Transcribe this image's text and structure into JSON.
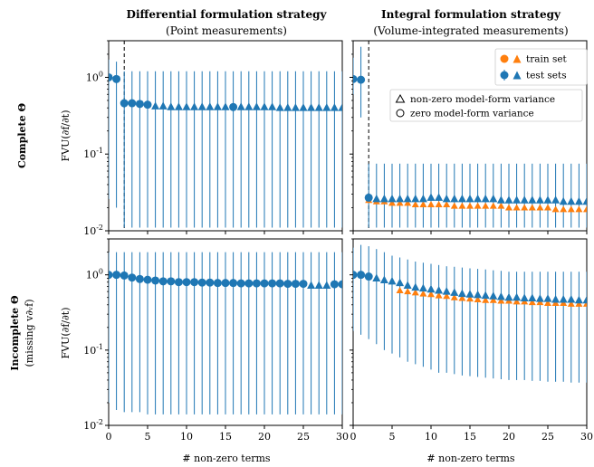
{
  "figure": {
    "col_titles": [
      {
        "main": "Differential formulation strategy",
        "sub": "(Point measurements)"
      },
      {
        "main": "Integral formulation strategy",
        "sub": "(Volume-integrated measurements)"
      }
    ],
    "row_labels": [
      {
        "main": "Complete Θ",
        "sub": ""
      },
      {
        "main": "Incomplete Θ",
        "sub": "(missing v∂ᵥf)"
      }
    ],
    "ylabel": "FVU(∂f/∂t)",
    "xlabel": "# non-zero terms",
    "legend_top": {
      "train": "train set",
      "test": "test sets"
    },
    "legend_markers": {
      "triangle": "non-zero model-form variance",
      "circle": "zero model-form variance"
    },
    "colors": {
      "test": "#1f77b4",
      "train": "#ff7f0e"
    }
  },
  "chart_data": [
    {
      "type": "scatter",
      "panel": "complete-differential",
      "xlim": [
        0,
        30
      ],
      "ylim": [
        0.01,
        3
      ],
      "yscale": "log",
      "xticks": [
        "0",
        "5",
        "10",
        "15",
        "20",
        "25",
        "30"
      ],
      "yticks": [
        "10^-2",
        "10^-1",
        "10^0"
      ],
      "vline": 2,
      "test": {
        "x": [
          0,
          1,
          2,
          3,
          4,
          5,
          6,
          7,
          8,
          9,
          10,
          11,
          12,
          13,
          14,
          15,
          16,
          17,
          18,
          19,
          20,
          21,
          22,
          23,
          24,
          25,
          26,
          27,
          28,
          29,
          30
        ],
        "y": [
          1.0,
          0.95,
          0.46,
          0.46,
          0.45,
          0.44,
          0.42,
          0.42,
          0.41,
          0.41,
          0.41,
          0.41,
          0.41,
          0.41,
          0.41,
          0.41,
          0.41,
          0.41,
          0.41,
          0.41,
          0.41,
          0.41,
          0.4,
          0.4,
          0.4,
          0.4,
          0.4,
          0.4,
          0.4,
          0.4,
          0.4
        ],
        "marker": [
          "circle",
          "circle",
          "circle",
          "circle",
          "circle",
          "circle",
          "triangle",
          "triangle",
          "triangle",
          "triangle",
          "triangle",
          "triangle",
          "triangle",
          "triangle",
          "triangle",
          "triangle",
          "circle",
          "triangle",
          "triangle",
          "triangle",
          "triangle",
          "triangle",
          "triangle",
          "triangle",
          "triangle",
          "triangle",
          "triangle",
          "triangle",
          "triangle",
          "triangle",
          "triangle"
        ],
        "y_low": [
          0.026,
          0.02,
          0.011,
          0.011,
          0.011,
          0.011,
          0.011,
          0.011,
          0.011,
          0.011,
          0.011,
          0.011,
          0.011,
          0.011,
          0.011,
          0.011,
          0.011,
          0.011,
          0.011,
          0.011,
          0.011,
          0.011,
          0.011,
          0.011,
          0.011,
          0.011,
          0.011,
          0.011,
          0.011,
          0.011,
          0.011
        ],
        "y_high": [
          1.7,
          1.6,
          1.2,
          1.2,
          1.2,
          1.2,
          1.2,
          1.2,
          1.2,
          1.2,
          1.2,
          1.2,
          1.2,
          1.2,
          1.2,
          1.2,
          1.2,
          1.2,
          1.2,
          1.2,
          1.2,
          1.2,
          1.2,
          1.2,
          1.2,
          1.2,
          1.2,
          1.2,
          1.2,
          1.2,
          1.2
        ]
      }
    },
    {
      "type": "scatter",
      "panel": "complete-integral",
      "xlim": [
        0,
        30
      ],
      "ylim": [
        0.01,
        3
      ],
      "yscale": "log",
      "xticks": [
        "0",
        "5",
        "10",
        "15",
        "20",
        "25",
        "30"
      ],
      "yticks": [
        "10^-2",
        "10^-1",
        "10^0"
      ],
      "vline": 2,
      "test": {
        "x": [
          0,
          1,
          2,
          3,
          4,
          5,
          6,
          7,
          8,
          9,
          10,
          11,
          12,
          13,
          14,
          15,
          16,
          17,
          18,
          19,
          20,
          21,
          22,
          23,
          24,
          25,
          26,
          27,
          28,
          29,
          30
        ],
        "y": [
          0.95,
          0.93,
          0.027,
          0.026,
          0.026,
          0.026,
          0.026,
          0.026,
          0.026,
          0.026,
          0.027,
          0.027,
          0.026,
          0.026,
          0.026,
          0.026,
          0.026,
          0.026,
          0.026,
          0.025,
          0.025,
          0.025,
          0.025,
          0.025,
          0.025,
          0.025,
          0.025,
          0.024,
          0.024,
          0.024,
          0.024
        ],
        "marker": [
          "circle",
          "circle",
          "circle",
          "triangle",
          "triangle",
          "triangle",
          "triangle",
          "triangle",
          "triangle",
          "triangle",
          "triangle",
          "triangle",
          "triangle",
          "triangle",
          "triangle",
          "triangle",
          "triangle",
          "triangle",
          "triangle",
          "triangle",
          "triangle",
          "triangle",
          "triangle",
          "triangle",
          "triangle",
          "triangle",
          "triangle",
          "triangle",
          "triangle",
          "triangle",
          "triangle"
        ],
        "y_low": [
          0.6,
          0.3,
          0.011,
          0.011,
          0.011,
          0.011,
          0.011,
          0.011,
          0.011,
          0.011,
          0.011,
          0.011,
          0.011,
          0.011,
          0.011,
          0.011,
          0.011,
          0.011,
          0.011,
          0.011,
          0.011,
          0.011,
          0.011,
          0.011,
          0.011,
          0.011,
          0.011,
          0.011,
          0.011,
          0.011,
          0.011
        ],
        "y_high": [
          1.8,
          2.5,
          0.075,
          0.075,
          0.075,
          0.075,
          0.075,
          0.075,
          0.075,
          0.075,
          0.075,
          0.075,
          0.075,
          0.075,
          0.075,
          0.075,
          0.075,
          0.075,
          0.075,
          0.075,
          0.075,
          0.075,
          0.075,
          0.075,
          0.075,
          0.075,
          0.075,
          0.075,
          0.075,
          0.075,
          0.075
        ]
      },
      "train": {
        "x": [
          2,
          3,
          4,
          5,
          6,
          7,
          8,
          9,
          10,
          11,
          12,
          13,
          14,
          15,
          16,
          17,
          18,
          19,
          20,
          21,
          22,
          23,
          24,
          25,
          26,
          27,
          28,
          29,
          30
        ],
        "y": [
          0.025,
          0.024,
          0.024,
          0.023,
          0.023,
          0.023,
          0.022,
          0.022,
          0.022,
          0.022,
          0.022,
          0.021,
          0.021,
          0.021,
          0.021,
          0.021,
          0.021,
          0.021,
          0.02,
          0.02,
          0.02,
          0.02,
          0.02,
          0.02,
          0.019,
          0.019,
          0.019,
          0.019,
          0.019
        ]
      }
    },
    {
      "type": "scatter",
      "panel": "incomplete-differential",
      "xlim": [
        0,
        30
      ],
      "ylim": [
        0.01,
        3
      ],
      "yscale": "log",
      "xticks": [
        "0",
        "5",
        "10",
        "15",
        "20",
        "25",
        "30"
      ],
      "yticks": [
        "10^-2",
        "10^-1",
        "10^0"
      ],
      "test": {
        "x": [
          0,
          1,
          2,
          3,
          4,
          5,
          6,
          7,
          8,
          9,
          10,
          11,
          12,
          13,
          14,
          15,
          16,
          17,
          18,
          19,
          20,
          21,
          22,
          23,
          24,
          25,
          26,
          27,
          28,
          29,
          30
        ],
        "y": [
          1.0,
          1.0,
          0.98,
          0.92,
          0.88,
          0.86,
          0.84,
          0.82,
          0.82,
          0.8,
          0.8,
          0.8,
          0.79,
          0.79,
          0.78,
          0.78,
          0.78,
          0.77,
          0.77,
          0.77,
          0.77,
          0.77,
          0.77,
          0.76,
          0.76,
          0.76,
          0.72,
          0.72,
          0.72,
          0.75,
          0.75
        ],
        "marker": [
          "circle",
          "circle",
          "circle",
          "circle",
          "circle",
          "circle",
          "circle",
          "circle",
          "circle",
          "circle",
          "circle",
          "circle",
          "circle",
          "circle",
          "circle",
          "circle",
          "circle",
          "circle",
          "circle",
          "circle",
          "circle",
          "circle",
          "circle",
          "circle",
          "circle",
          "circle",
          "triangle",
          "triangle",
          "triangle",
          "circle",
          "circle"
        ],
        "y_low": [
          0.02,
          0.016,
          0.015,
          0.015,
          0.015,
          0.014,
          0.014,
          0.014,
          0.014,
          0.014,
          0.014,
          0.014,
          0.014,
          0.014,
          0.014,
          0.014,
          0.014,
          0.014,
          0.014,
          0.014,
          0.014,
          0.014,
          0.014,
          0.014,
          0.014,
          0.014,
          0.014,
          0.014,
          0.014,
          0.014,
          0.014
        ],
        "y_high": [
          2.0,
          2.0,
          2.0,
          2.0,
          2.0,
          2.0,
          2.0,
          2.0,
          2.0,
          2.0,
          2.0,
          2.0,
          2.0,
          2.0,
          2.0,
          2.0,
          2.0,
          2.0,
          2.0,
          2.0,
          2.0,
          2.0,
          2.0,
          2.0,
          2.0,
          2.0,
          2.0,
          2.0,
          2.0,
          2.0,
          2.0
        ]
      }
    },
    {
      "type": "scatter",
      "panel": "incomplete-integral",
      "xlim": [
        0,
        30
      ],
      "ylim": [
        0.01,
        3
      ],
      "yscale": "log",
      "xticks": [
        "0",
        "5",
        "10",
        "15",
        "20",
        "25",
        "30"
      ],
      "yticks": [
        "10^-2",
        "10^-1",
        "10^0"
      ],
      "test": {
        "x": [
          0,
          1,
          2,
          3,
          4,
          5,
          6,
          7,
          8,
          9,
          10,
          11,
          12,
          13,
          14,
          15,
          16,
          17,
          18,
          19,
          20,
          21,
          22,
          23,
          24,
          25,
          26,
          27,
          28,
          29,
          30
        ],
        "y": [
          1.0,
          1.0,
          0.95,
          0.9,
          0.85,
          0.82,
          0.78,
          0.72,
          0.68,
          0.66,
          0.64,
          0.62,
          0.6,
          0.58,
          0.56,
          0.55,
          0.54,
          0.53,
          0.52,
          0.51,
          0.5,
          0.5,
          0.49,
          0.49,
          0.48,
          0.48,
          0.47,
          0.47,
          0.47,
          0.46,
          0.46
        ],
        "marker": [
          "circle",
          "circle",
          "circle",
          "triangle",
          "triangle",
          "triangle",
          "triangle",
          "triangle",
          "triangle",
          "triangle",
          "triangle",
          "triangle",
          "triangle",
          "triangle",
          "triangle",
          "triangle",
          "triangle",
          "triangle",
          "triangle",
          "triangle",
          "triangle",
          "triangle",
          "triangle",
          "triangle",
          "triangle",
          "triangle",
          "triangle",
          "triangle",
          "triangle",
          "triangle",
          "triangle"
        ],
        "y_low": [
          0.18,
          0.16,
          0.14,
          0.12,
          0.1,
          0.09,
          0.08,
          0.07,
          0.065,
          0.06,
          0.055,
          0.05,
          0.05,
          0.048,
          0.046,
          0.045,
          0.044,
          0.043,
          0.042,
          0.041,
          0.04,
          0.04,
          0.04,
          0.039,
          0.039,
          0.038,
          0.038,
          0.038,
          0.037,
          0.037,
          0.037
        ],
        "y_high": [
          2.3,
          2.5,
          2.4,
          2.2,
          2.0,
          1.8,
          1.7,
          1.6,
          1.5,
          1.45,
          1.4,
          1.35,
          1.3,
          1.28,
          1.25,
          1.22,
          1.2,
          1.18,
          1.15,
          1.13,
          1.1,
          1.1,
          1.1,
          1.1,
          1.1,
          1.1,
          1.1,
          1.1,
          1.1,
          1.1,
          1.1
        ]
      },
      "train": {
        "x": [
          6,
          7,
          8,
          9,
          10,
          11,
          12,
          13,
          14,
          15,
          16,
          17,
          18,
          19,
          20,
          21,
          22,
          23,
          24,
          25,
          26,
          27,
          28,
          29,
          30
        ],
        "y": [
          0.62,
          0.6,
          0.58,
          0.56,
          0.55,
          0.53,
          0.52,
          0.5,
          0.49,
          0.48,
          0.47,
          0.46,
          0.46,
          0.45,
          0.45,
          0.44,
          0.44,
          0.43,
          0.43,
          0.42,
          0.42,
          0.42,
          0.41,
          0.41,
          0.41
        ]
      }
    }
  ]
}
